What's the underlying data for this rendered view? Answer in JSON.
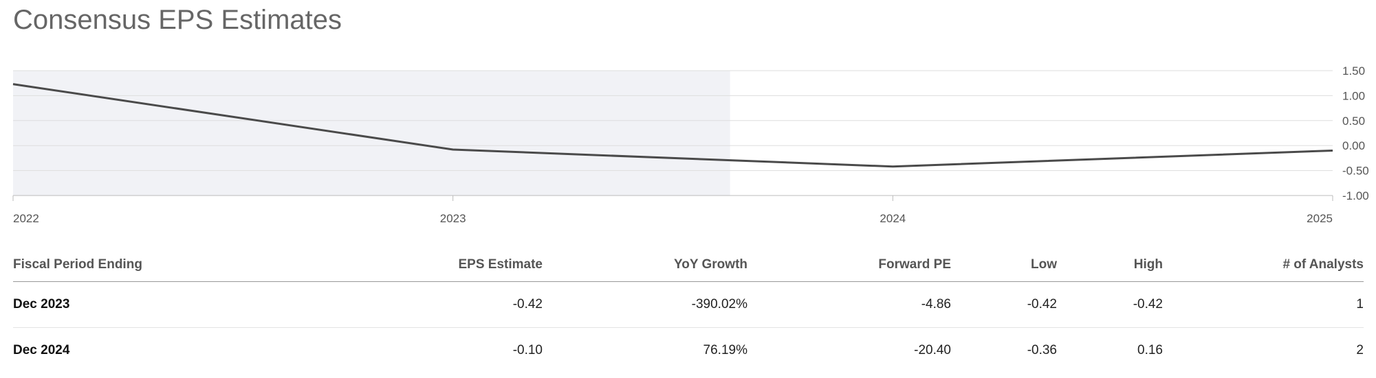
{
  "title": "Consensus EPS Estimates",
  "chart_data": {
    "type": "line",
    "x": [
      "2022",
      "2023",
      "2024",
      "2025"
    ],
    "x_labels": [
      "2022",
      "2023",
      "2024",
      "2025"
    ],
    "series": [
      {
        "values": [
          1.23,
          -0.08,
          -0.42,
          -0.1
        ]
      }
    ],
    "y_ticks": [
      "1.50",
      "1.00",
      "0.50",
      "0.00",
      "-0.50",
      "-1.00"
    ],
    "y_tick_values": [
      1.5,
      1.0,
      0.5,
      0.0,
      -0.5,
      -1.0
    ],
    "ylim": [
      -1.0,
      1.5
    ],
    "grid": true,
    "shaded_region": {
      "from": "2022",
      "to_fraction_after_2023": 0.63
    },
    "line_color": "#4a4a4a",
    "shade_color": "#f1f2f6"
  },
  "table": {
    "headers": [
      "Fiscal Period Ending",
      "EPS Estimate",
      "YoY Growth",
      "Forward PE",
      "Low",
      "High",
      "# of Analysts"
    ],
    "rows": [
      [
        "Dec 2023",
        "-0.42",
        "-390.02%",
        "-4.86",
        "-0.42",
        "-0.42",
        "1"
      ],
      [
        "Dec 2024",
        "-0.10",
        "76.19%",
        "-20.40",
        "-0.36",
        "0.16",
        "2"
      ]
    ]
  }
}
